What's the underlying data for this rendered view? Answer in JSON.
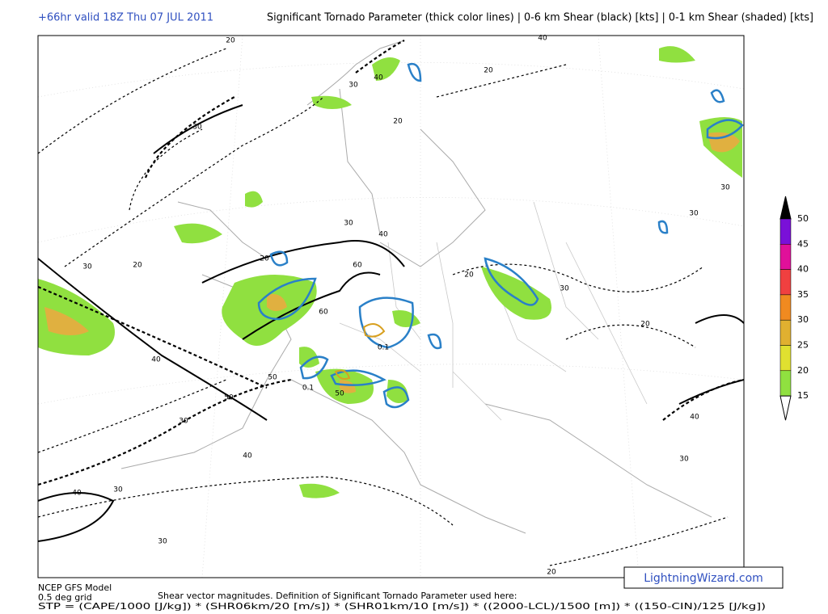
{
  "header": {
    "run": "+66hr valid 18Z Thu 07 JUL 2011",
    "description": "Significant Tornado Parameter (thick color lines) | 0-6 km Shear (black) [kts] | 0-1 km Shear (shaded) [kts]"
  },
  "colorbar": {
    "ticks": [
      50,
      45,
      40,
      35,
      30,
      25,
      20,
      15
    ],
    "colors": [
      "#7a10d8",
      "#e0109a",
      "#f04040",
      "#f08a20",
      "#e0b030",
      "#e0e030",
      "#90e040"
    ],
    "top_color": "#000000",
    "bottom_color": "#ffffff"
  },
  "contour_labels": [
    "20",
    "40",
    "30",
    "20",
    "20",
    "40",
    "30",
    "20",
    "30",
    "20",
    "30",
    "40",
    "60",
    "60",
    "40",
    "50",
    "50",
    "30",
    "40",
    "40",
    "30",
    "30",
    "20",
    "30",
    "20",
    "30",
    "30",
    "30",
    "40",
    "20",
    "0.1",
    "0.1",
    "50"
  ],
  "footer": {
    "model": "NCEP GFS Model",
    "grid": "0.5 deg grid",
    "note": "Shear vector magnitudes. Definition of Significant Tornado Parameter used here:",
    "formula": "STP = (CAPE/1000 [J/kg]) * (SHR06km/20 [m/s]) * (SHR01km/10 [m/s]) * ((2000-LCL)/1500 [m]) * ((150-CIN)/125 [J/kg])"
  },
  "watermark": "LightningWizard.com"
}
